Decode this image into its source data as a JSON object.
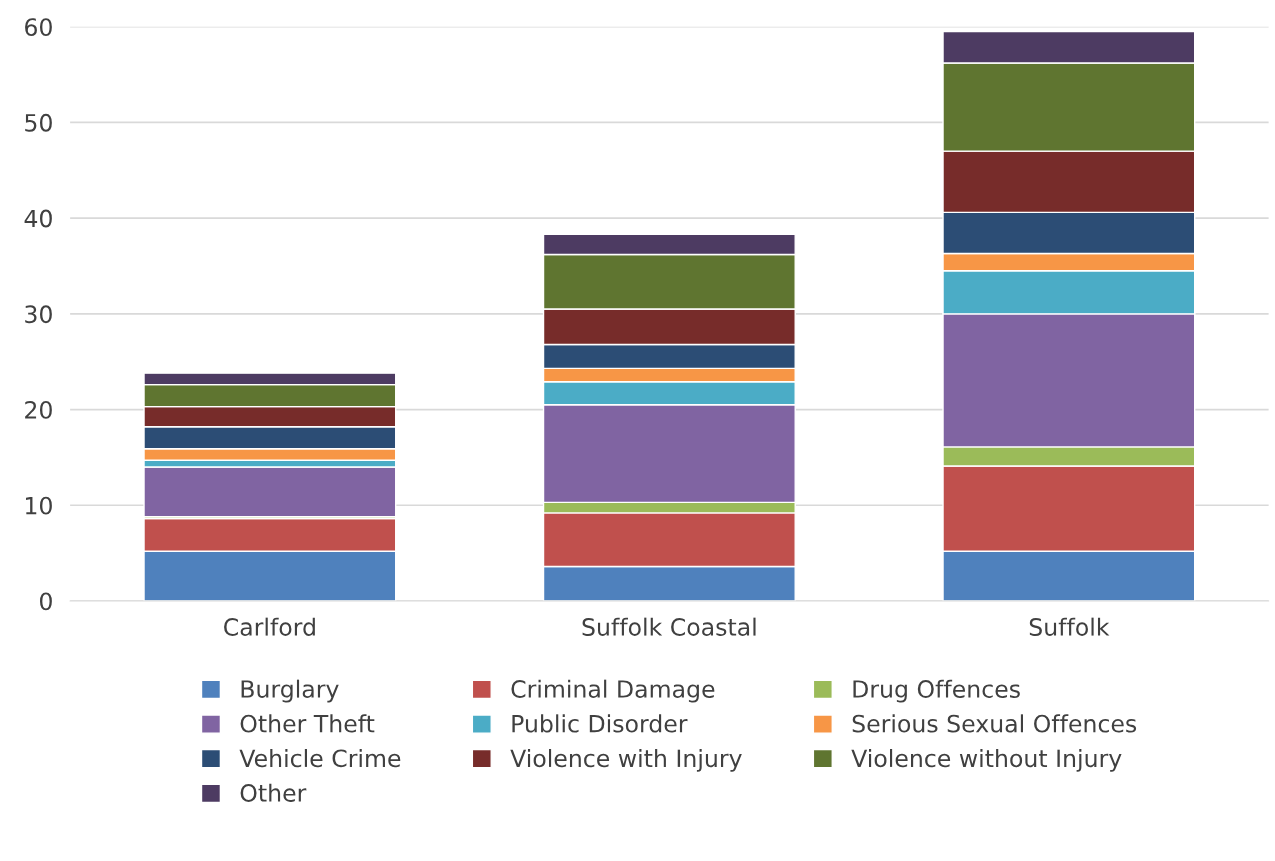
{
  "chart_data": {
    "type": "bar",
    "stacked": true,
    "categories": [
      "Carlford",
      "Suffolk Coastal",
      "Suffolk"
    ],
    "series": [
      {
        "name": "Burglary",
        "color": "#4f81bd",
        "values": [
          5.2,
          3.6,
          5.2
        ]
      },
      {
        "name": "Criminal Damage",
        "color": "#c0504d",
        "values": [
          3.4,
          5.6,
          8.9
        ]
      },
      {
        "name": "Drug Offences",
        "color": "#9bbb59",
        "values": [
          0.2,
          1.1,
          2.0
        ]
      },
      {
        "name": "Other Theft",
        "color": "#8064a2",
        "values": [
          5.2,
          10.2,
          13.9
        ]
      },
      {
        "name": "Public Disorder",
        "color": "#4bacc6",
        "values": [
          0.7,
          2.4,
          4.5
        ]
      },
      {
        "name": "Serious Sexual Offences",
        "color": "#f79646",
        "values": [
          1.2,
          1.4,
          1.8
        ]
      },
      {
        "name": "Vehicle Crime",
        "color": "#2c4d75",
        "values": [
          2.3,
          2.5,
          4.3
        ]
      },
      {
        "name": "Violence with Injury",
        "color": "#772c2a",
        "values": [
          2.1,
          3.7,
          6.4
        ]
      },
      {
        "name": "Violence without Injury",
        "color": "#5f7530",
        "values": [
          2.3,
          5.7,
          9.2
        ]
      },
      {
        "name": "Other",
        "color": "#4d3b62",
        "values": [
          1.2,
          2.1,
          3.3
        ]
      }
    ],
    "ylim": [
      0,
      60
    ],
    "yticks": [
      0,
      10,
      20,
      30,
      40,
      50,
      60
    ],
    "grid": "y",
    "legend": "bottom"
  }
}
